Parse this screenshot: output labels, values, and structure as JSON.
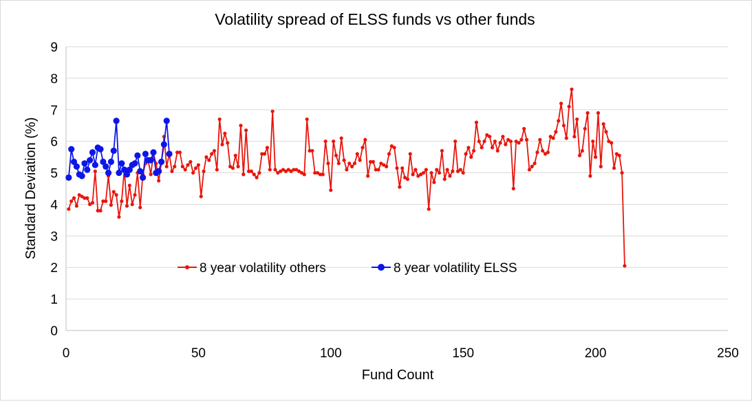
{
  "chart_data": {
    "type": "line",
    "title": "Volatility spread of ELSS funds vs other funds",
    "xlabel": "Fund Count",
    "ylabel": "Standard Deviation (%)",
    "xlim": [
      0,
      250
    ],
    "ylim": [
      0,
      9
    ],
    "x_ticks": [
      "0",
      "50",
      "100",
      "150",
      "200",
      "250"
    ],
    "y_ticks": [
      "0",
      "1",
      "2",
      "3",
      "4",
      "5",
      "6",
      "7",
      "8",
      "9"
    ],
    "grid": "horizontal",
    "legend_position": "inside-center-left",
    "series": [
      {
        "name": "8 year volatility others",
        "color": "#e8160c",
        "x": [
          1,
          2,
          3,
          4,
          5,
          6,
          7,
          8,
          9,
          10,
          11,
          12,
          13,
          14,
          15,
          16,
          17,
          18,
          19,
          20,
          21,
          22,
          23,
          24,
          25,
          26,
          27,
          28,
          29,
          30,
          31,
          32,
          33,
          34,
          35,
          36,
          37,
          38,
          39,
          40,
          41,
          42,
          43,
          44,
          45,
          46,
          47,
          48,
          49,
          50,
          51,
          52,
          53,
          54,
          55,
          56,
          57,
          58,
          59,
          60,
          61,
          62,
          63,
          64,
          65,
          66,
          67,
          68,
          69,
          70,
          71,
          72,
          73,
          74,
          75,
          76,
          77,
          78,
          79,
          80,
          81,
          82,
          83,
          84,
          85,
          86,
          87,
          88,
          89,
          90,
          91,
          92,
          93,
          94,
          95,
          96,
          97,
          98,
          99,
          100,
          101,
          102,
          103,
          104,
          105,
          106,
          107,
          108,
          109,
          110,
          111,
          112,
          113,
          114,
          115,
          116,
          117,
          118,
          119,
          120,
          121,
          122,
          123,
          124,
          125,
          126,
          127,
          128,
          129,
          130,
          131,
          132,
          133,
          134,
          135,
          136,
          137,
          138,
          139,
          140,
          141,
          142,
          143,
          144,
          145,
          146,
          147,
          148,
          149,
          150,
          151,
          152,
          153,
          154,
          155,
          156,
          157,
          158,
          159,
          160,
          161,
          162,
          163,
          164,
          165,
          166,
          167,
          168,
          169,
          170,
          171,
          172,
          173,
          174,
          175,
          176,
          177,
          178,
          179,
          180,
          181,
          182,
          183,
          184,
          185,
          186,
          187,
          188,
          189,
          190,
          191,
          192,
          193,
          194,
          195,
          196,
          197,
          198,
          199,
          200,
          201,
          202,
          203,
          204,
          205,
          206,
          207,
          208,
          209,
          210,
          211
        ],
        "values": [
          3.85,
          4.1,
          4.2,
          3.95,
          4.3,
          4.25,
          4.2,
          4.2,
          4.0,
          4.05,
          5.05,
          3.8,
          3.8,
          4.1,
          4.1,
          4.9,
          3.98,
          4.4,
          4.3,
          3.6,
          4.1,
          5.1,
          3.95,
          4.6,
          4.0,
          4.3,
          5.0,
          3.9,
          4.95,
          5.3,
          5.4,
          4.95,
          5.6,
          5.3,
          4.75,
          5.3,
          6.15,
          5.2,
          5.6,
          5.05,
          5.2,
          5.65,
          5.65,
          5.2,
          5.1,
          5.25,
          5.35,
          5.0,
          5.15,
          5.25,
          4.25,
          5.05,
          5.5,
          5.4,
          5.6,
          5.7,
          5.1,
          6.7,
          5.9,
          6.25,
          5.95,
          5.2,
          5.15,
          5.55,
          5.2,
          6.5,
          4.95,
          6.35,
          5.05,
          5.05,
          4.95,
          4.85,
          5.0,
          5.6,
          5.6,
          5.8,
          5.1,
          6.95,
          5.1,
          5.0,
          5.05,
          5.1,
          5.05,
          5.1,
          5.05,
          5.1,
          5.1,
          5.05,
          5.0,
          4.95,
          6.7,
          5.7,
          5.7,
          5.0,
          5.0,
          4.95,
          4.95,
          6.0,
          5.3,
          4.45,
          6.0,
          5.55,
          5.3,
          6.1,
          5.4,
          5.1,
          5.3,
          5.2,
          5.3,
          5.6,
          5.4,
          5.8,
          6.05,
          4.9,
          5.35,
          5.35,
          5.1,
          5.1,
          5.3,
          5.25,
          5.2,
          5.6,
          5.85,
          5.8,
          5.15,
          4.55,
          5.15,
          4.85,
          4.8,
          5.6,
          4.95,
          5.1,
          4.9,
          4.95,
          5.0,
          5.1,
          3.85,
          5.0,
          4.7,
          5.1,
          5.0,
          5.7,
          4.8,
          5.1,
          4.9,
          5.05,
          6.0,
          5.05,
          5.1,
          5.0,
          5.6,
          5.8,
          5.5,
          5.7,
          6.6,
          6.0,
          5.8,
          6.0,
          6.2,
          6.15,
          5.8,
          6.0,
          5.7,
          5.95,
          6.15,
          5.9,
          6.05,
          6.0,
          4.5,
          6.0,
          5.95,
          6.05,
          6.4,
          6.05,
          5.1,
          5.2,
          5.3,
          5.65,
          6.05,
          5.7,
          5.6,
          5.65,
          6.15,
          6.1,
          6.3,
          6.65,
          7.2,
          6.5,
          6.1,
          7.1,
          7.65,
          6.15,
          6.7,
          5.55,
          5.7,
          6.4,
          6.9,
          4.9,
          6.0,
          5.5,
          6.9,
          5.2,
          6.55,
          6.3,
          6.0,
          5.95,
          5.15,
          5.6,
          5.55,
          5.0,
          2.05
        ]
      },
      {
        "name": "8 year volatility ELSS",
        "color": "#0c16e8",
        "x": [
          1,
          2,
          3,
          4,
          5,
          6,
          7,
          8,
          9,
          10,
          11,
          12,
          13,
          14,
          15,
          16,
          17,
          18,
          19,
          20,
          21,
          22,
          23,
          24,
          25,
          26,
          27,
          28,
          29,
          30,
          31,
          32,
          33,
          34,
          35,
          36,
          37,
          38,
          39
        ],
        "values": [
          4.85,
          5.75,
          5.35,
          5.2,
          4.95,
          4.9,
          5.3,
          5.1,
          5.4,
          5.65,
          5.25,
          5.8,
          5.75,
          5.35,
          5.2,
          5.0,
          5.35,
          5.7,
          6.65,
          5.0,
          5.3,
          5.1,
          4.95,
          5.1,
          5.25,
          5.3,
          5.55,
          5.05,
          4.85,
          5.6,
          5.4,
          5.4,
          5.65,
          5.0,
          5.05,
          5.35,
          5.9,
          6.65,
          5.6
        ]
      }
    ]
  }
}
